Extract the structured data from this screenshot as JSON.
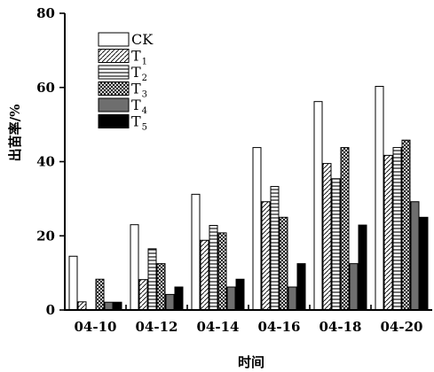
{
  "chart_data": {
    "type": "bar",
    "xlabel": "时间",
    "ylabel": "出苗率/%",
    "ylim": [
      0,
      80
    ],
    "yticks": [
      0,
      20,
      40,
      60,
      80
    ],
    "legend_placement": "top-left",
    "grid": false,
    "categories": [
      "04-10",
      "04-12",
      "04-14",
      "04-16",
      "04-18",
      "04-20"
    ],
    "series": [
      {
        "name": "CK",
        "legend_main": "CK",
        "legend_sub": "",
        "pattern": "white",
        "values": [
          14.5,
          23,
          31.2,
          43.8,
          56.2,
          60.3
        ]
      },
      {
        "name": "T1",
        "legend_main": "T",
        "legend_sub": "1",
        "pattern": "diagonal",
        "values": [
          2.2,
          8.2,
          18.8,
          29.2,
          39.5,
          41.7
        ]
      },
      {
        "name": "T2",
        "legend_main": "T",
        "legend_sub": "2",
        "pattern": "horizontal",
        "values": [
          0,
          16.5,
          22.8,
          33.3,
          35.4,
          43.8
        ]
      },
      {
        "name": "T3",
        "legend_main": "T",
        "legend_sub": "3",
        "pattern": "crosshatch",
        "values": [
          8.3,
          12.5,
          20.8,
          25,
          43.8,
          45.8
        ]
      },
      {
        "name": "T4",
        "legend_main": "T",
        "legend_sub": "4",
        "pattern": "gray",
        "values": [
          2.1,
          4.2,
          6.2,
          6.2,
          12.5,
          29.2
        ]
      },
      {
        "name": "T5",
        "legend_main": "T",
        "legend_sub": "5",
        "pattern": "black",
        "values": [
          2.1,
          6.2,
          8.3,
          12.5,
          22.9,
          25
        ]
      }
    ]
  }
}
